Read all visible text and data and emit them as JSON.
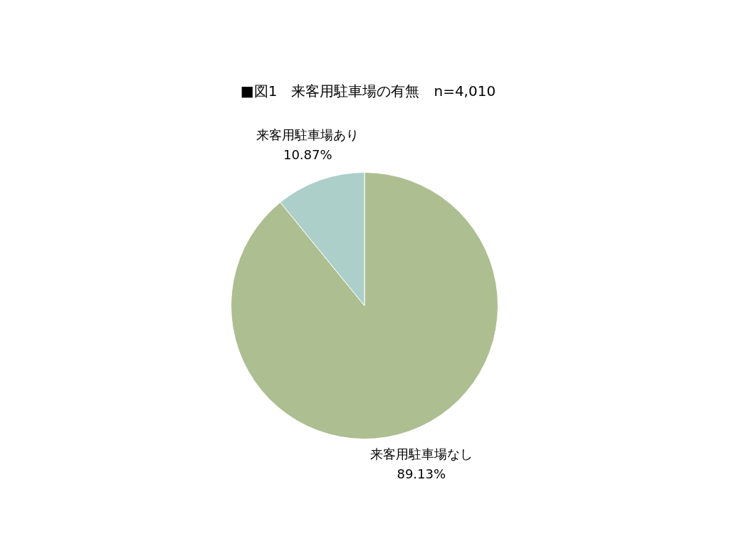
{
  "chart_data": {
    "type": "pie",
    "title": "■図1　来客用駐車場の有無　n=4,010",
    "categories": [
      "来客用駐車場なし",
      "来客用駐車場あり"
    ],
    "values": [
      89.13,
      10.87
    ],
    "value_labels": [
      "89.13%",
      "10.87%"
    ],
    "colors": [
      "#adbe91",
      "#accfca"
    ],
    "legend": false
  }
}
